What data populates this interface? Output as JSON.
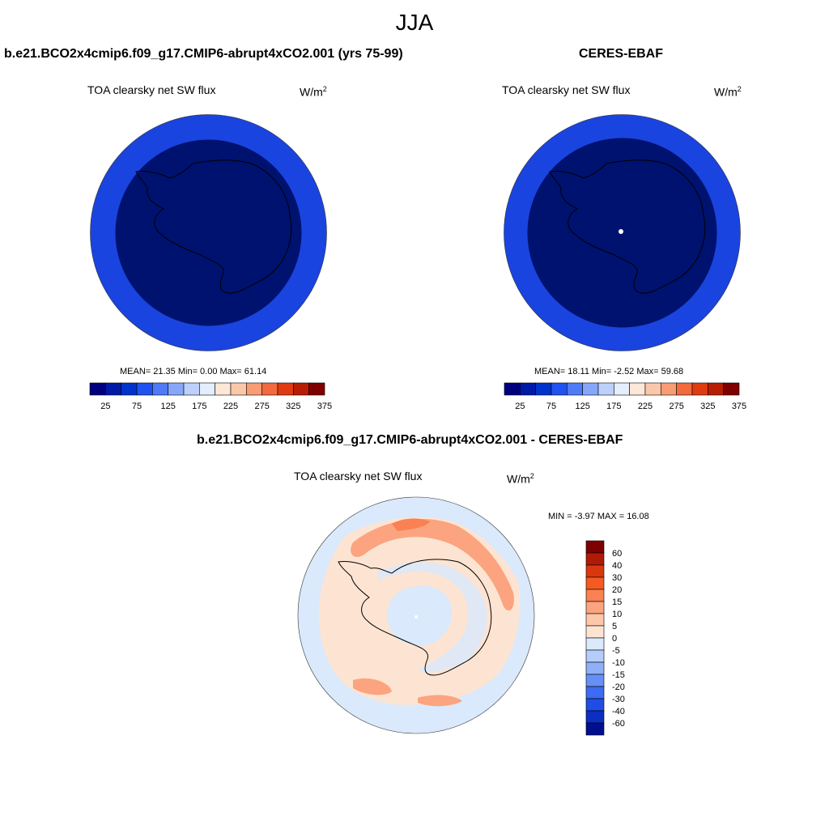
{
  "page": {
    "season": "JJA"
  },
  "panels": {
    "model": {
      "title": "b.e21.BCO2x4cmip6.f09_g17.CMIP6-abrupt4xCO2.001 (yrs 75-99)",
      "variable": "TOA clearsky net SW flux",
      "units_base": "W/m",
      "units_exp": "2",
      "stats": "MEAN=  21.35  Min=   0.00  Max=  61.14",
      "fill_inner": "#00126f",
      "fill_outer": "#1a44df"
    },
    "obs": {
      "title": "CERES-EBAF",
      "variable": "TOA clearsky net SW flux",
      "units_base": "W/m",
      "units_exp": "2",
      "stats": "MEAN=  18.11  Min=  -2.52  Max=  59.68",
      "fill_inner": "#00126f",
      "fill_outer": "#1a44df"
    },
    "diff": {
      "title": "b.e21.BCO2x4cmip6.f09_g17.CMIP6-abrupt4xCO2.001 - CERES-EBAF",
      "variable": "TOA clearsky net SW flux",
      "units_base": "W/m",
      "units_exp": "2",
      "stats": "MIN =  -3.97 MAX =  16.08"
    }
  },
  "colorbar_horizontal": {
    "colors": [
      "#00007f",
      "#001aa8",
      "#0033cc",
      "#1f52f0",
      "#4f7bf7",
      "#86a7f9",
      "#bcd0fb",
      "#e4eefc",
      "#fde7d6",
      "#fbc7ab",
      "#f89c74",
      "#f26a3d",
      "#e03a12",
      "#b71e05",
      "#7f0000"
    ],
    "labels": [
      "25",
      "75",
      "125",
      "175",
      "225",
      "275",
      "325",
      "375"
    ]
  },
  "colorbar_vertical": {
    "colors": [
      "#7f0000",
      "#b01a06",
      "#d9380f",
      "#f55a21",
      "#f98152",
      "#fba47f",
      "#fdc7aa",
      "#fde4d2",
      "#dae9fb",
      "#b5cdfa",
      "#8fb0f8",
      "#6690f5",
      "#3d6bf1",
      "#1f4de6",
      "#0a2fc2",
      "#000f8f"
    ],
    "labels": [
      "60",
      "40",
      "30",
      "20",
      "15",
      "10",
      "5",
      "0",
      "-5",
      "-10",
      "-15",
      "-20",
      "-30",
      "-40",
      "-60"
    ]
  }
}
